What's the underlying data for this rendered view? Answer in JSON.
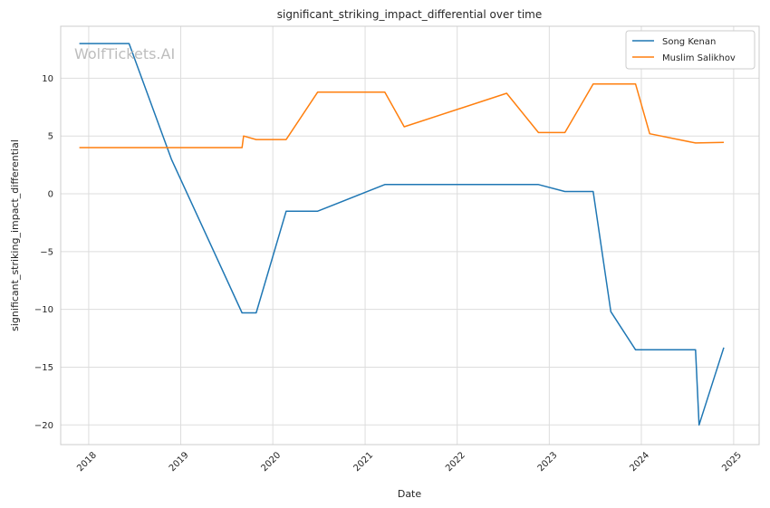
{
  "watermark": "WolfTickets.AI",
  "chart_data": {
    "type": "line",
    "title": "significant_striking_impact_differential over time",
    "xlabel": "Date",
    "ylabel": "significant_striking_impact_differential",
    "x_ticks": [
      "2018",
      "2019",
      "2020",
      "2021",
      "2022",
      "2023",
      "2024",
      "2025"
    ],
    "y_ticks": [
      10,
      5,
      0,
      -5,
      -10,
      -15,
      -20
    ],
    "y_tick_labels": [
      "10",
      "5",
      "0",
      "−5",
      "−10",
      "−15",
      "−20"
    ],
    "xlim": [
      "2017-09-12",
      "2025-04-12"
    ],
    "ylim": [
      -21.7,
      14.5
    ],
    "grid": true,
    "legend": "top-right",
    "series": [
      {
        "name": "Song Kenan",
        "color": "#1f77b4",
        "points": [
          [
            "2017-11-25",
            13.0
          ],
          [
            "2018-06-10",
            13.0
          ],
          [
            "2018-11-25",
            3.0
          ],
          [
            "2019-09-01",
            -10.3
          ],
          [
            "2019-10-27",
            -10.3
          ],
          [
            "2020-02-23",
            -1.5
          ],
          [
            "2020-06-27",
            -1.5
          ],
          [
            "2021-03-20",
            0.8
          ],
          [
            "2022-11-19",
            0.8
          ],
          [
            "2023-03-04",
            0.2
          ],
          [
            "2023-06-24",
            0.2
          ],
          [
            "2023-09-02",
            -10.2
          ],
          [
            "2023-12-09",
            -13.5
          ],
          [
            "2024-08-03",
            -13.5
          ],
          [
            "2024-08-17",
            -20.0
          ],
          [
            "2024-11-23",
            -13.3
          ]
        ]
      },
      {
        "name": "Muslim Salikhov",
        "color": "#ff7f0e",
        "points": [
          [
            "2017-11-25",
            4.0
          ],
          [
            "2019-09-01",
            4.0
          ],
          [
            "2019-09-07",
            5.0
          ],
          [
            "2019-10-27",
            4.7
          ],
          [
            "2020-02-23",
            4.7
          ],
          [
            "2020-06-27",
            8.8
          ],
          [
            "2021-03-20",
            8.8
          ],
          [
            "2021-06-05",
            5.8
          ],
          [
            "2022-07-16",
            8.7
          ],
          [
            "2022-11-19",
            5.3
          ],
          [
            "2023-03-04",
            5.3
          ],
          [
            "2023-06-24",
            9.5
          ],
          [
            "2023-12-09",
            9.5
          ],
          [
            "2024-02-03",
            5.2
          ],
          [
            "2024-08-03",
            4.4
          ],
          [
            "2024-11-23",
            4.45
          ]
        ]
      }
    ]
  }
}
